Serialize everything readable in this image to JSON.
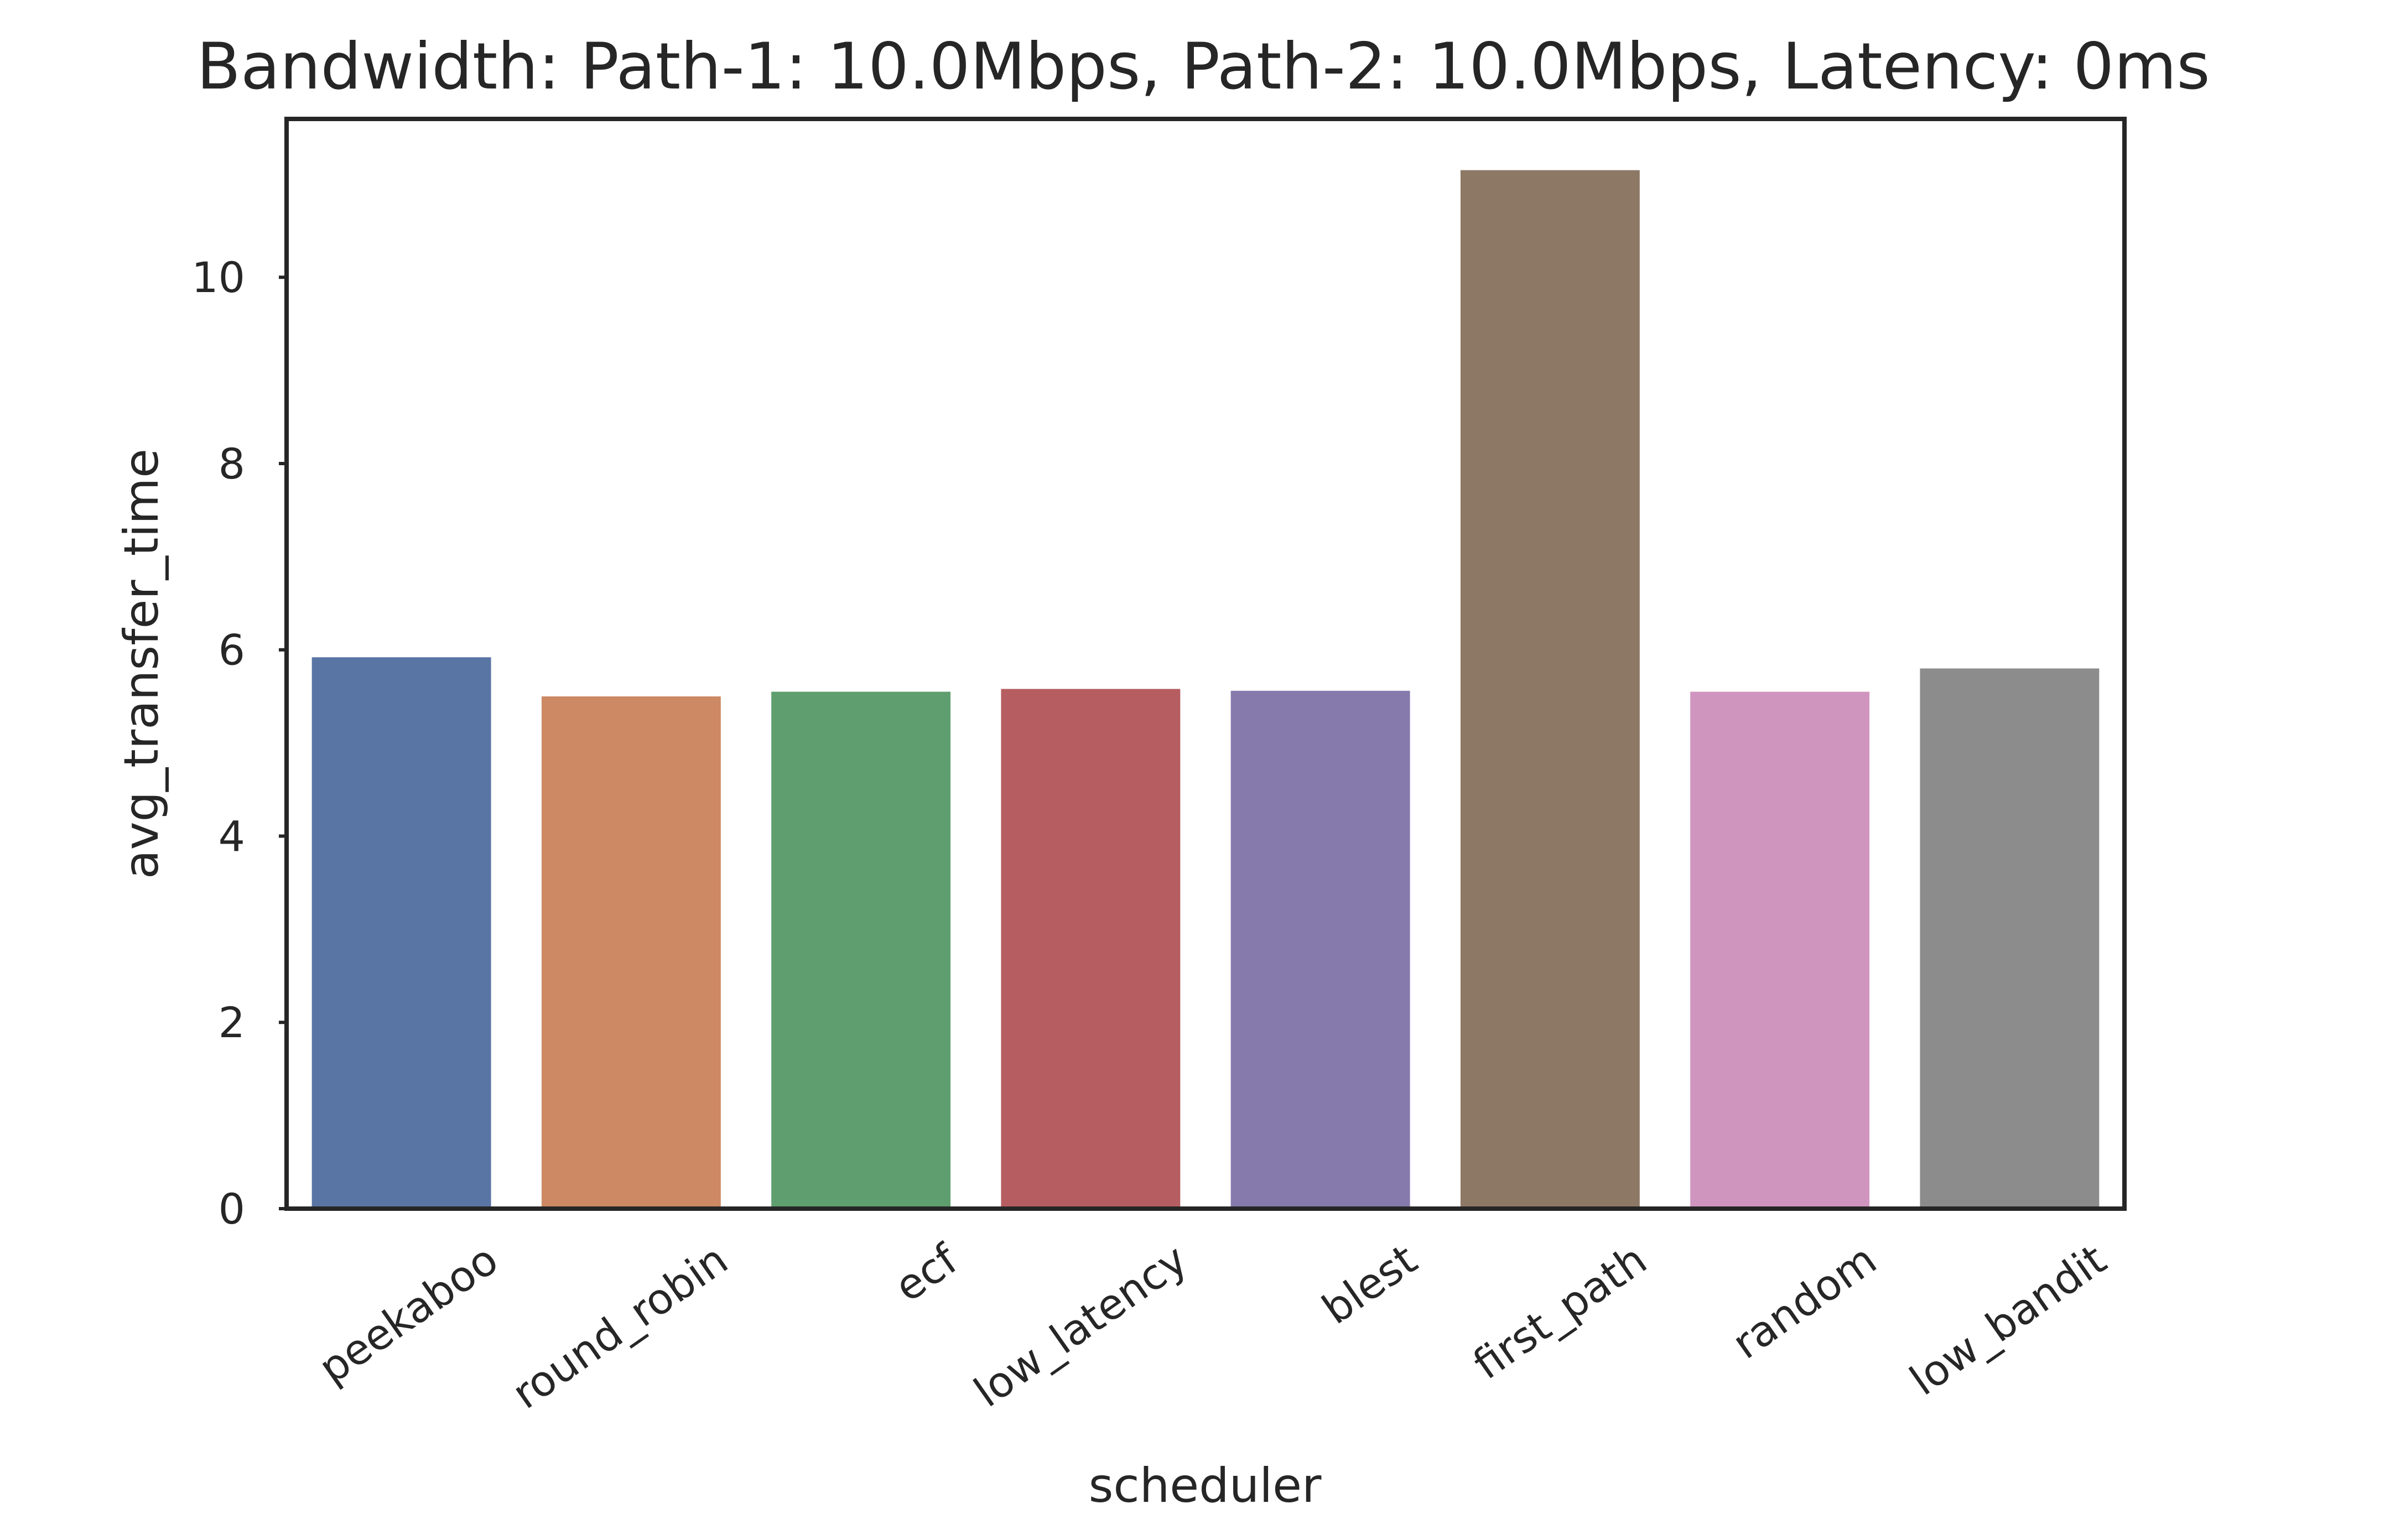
{
  "chart_data": {
    "type": "bar",
    "title": "Bandwidth: Path-1: 10.0Mbps, Path-2: 10.0Mbps, Latency: 0ms",
    "xlabel": "scheduler",
    "ylabel": "avg_transfer_time",
    "categories": [
      "peekaboo",
      "round_robin",
      "ecf",
      "low_latency",
      "blest",
      "first_path",
      "random",
      "low_bandit"
    ],
    "values": [
      5.92,
      5.5,
      5.55,
      5.58,
      5.56,
      11.15,
      5.55,
      5.8
    ],
    "colors": [
      "#5975a4",
      "#cc8963",
      "#5f9e6e",
      "#b55d60",
      "#857aab",
      "#8d7866",
      "#d095bf",
      "#8c8c8c"
    ],
    "ylim": [
      0,
      11.7
    ],
    "yticks": [
      0,
      2,
      4,
      6,
      8,
      10
    ],
    "grid": false,
    "legend": "none"
  }
}
